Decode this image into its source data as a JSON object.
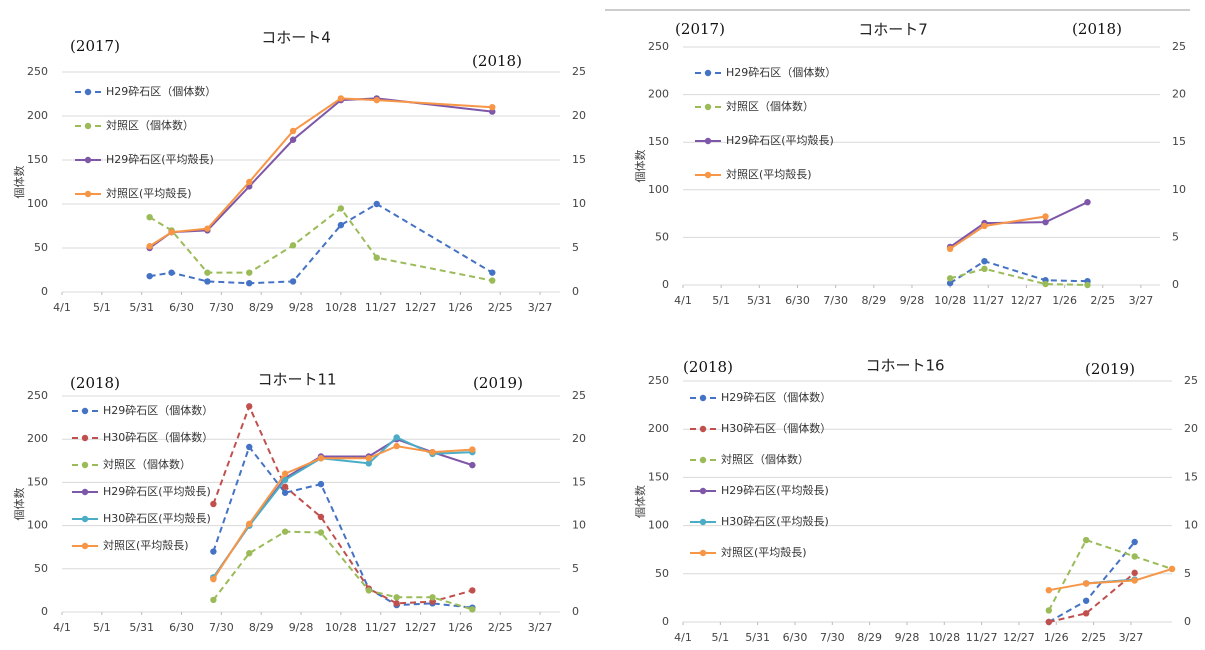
{
  "chart_data": [
    {
      "type": "line",
      "title": "コホート4",
      "annotations": [
        "(2017)",
        "(2018)"
      ],
      "y_label": "個体数",
      "x": [
        2.2,
        2.75,
        3.65,
        4.7,
        5.8,
        7.0,
        7.9,
        10.8
      ],
      "xlim": [
        0,
        12.5
      ],
      "xticks": [
        {
          "value": 0,
          "label": "4/1"
        },
        {
          "value": 1,
          "label": "5/1"
        },
        {
          "value": 2,
          "label": "5/31"
        },
        {
          "value": 3,
          "label": "6/30"
        },
        {
          "value": 4,
          "label": "7/30"
        },
        {
          "value": 5,
          "label": "8/29"
        },
        {
          "value": 6,
          "label": "9/28"
        },
        {
          "value": 7,
          "label": "10/28"
        },
        {
          "value": 8,
          "label": "11/27"
        },
        {
          "value": 9,
          "label": "12/27"
        },
        {
          "value": 10,
          "label": "1/26"
        },
        {
          "value": 11,
          "label": "2/25"
        },
        {
          "value": 12,
          "label": "3/27"
        }
      ],
      "ylim": [
        0,
        250
      ],
      "yticks": [
        0,
        50,
        100,
        150,
        200,
        250
      ],
      "y2lim": [
        0,
        25
      ],
      "y2ticks": [
        0,
        5,
        10,
        15,
        20,
        25
      ],
      "grid": true,
      "series": [
        {
          "name": "H29砕石区（個体数）",
          "color": "#4472c4",
          "line_style": "dashed",
          "values": [
            18,
            22,
            12,
            10,
            12,
            76,
            100,
            22
          ]
        },
        {
          "name": "対照区（個体数）",
          "color": "#9bbb59",
          "line_style": "dashed",
          "values": [
            85,
            70,
            22,
            22,
            53,
            95,
            39,
            13
          ]
        },
        {
          "name": "H29砕石区(平均殻長)",
          "color": "#7e57a8",
          "line_style": "solid",
          "axis": "y2",
          "values": [
            5.0,
            6.8,
            7.0,
            12.0,
            17.3,
            21.8,
            22.0,
            20.5
          ]
        },
        {
          "name": "対照区(平均殻長)",
          "color": "#f79646",
          "line_style": "solid",
          "axis": "y2",
          "values": [
            5.2,
            6.8,
            7.2,
            12.5,
            18.3,
            22.0,
            21.8,
            21.0
          ]
        }
      ]
    },
    {
      "type": "line",
      "title": "コホート7",
      "annotations": [
        "(2017)",
        "(2018)"
      ],
      "y_label": "個体数",
      "x": [
        7.0,
        7.9,
        9.5,
        10.6
      ],
      "xlim": [
        0,
        12.5
      ],
      "xticks": [
        {
          "value": 0,
          "label": "4/1"
        },
        {
          "value": 1,
          "label": "5/1"
        },
        {
          "value": 2,
          "label": "5/31"
        },
        {
          "value": 3,
          "label": "6/30"
        },
        {
          "value": 4,
          "label": "7/30"
        },
        {
          "value": 5,
          "label": "8/29"
        },
        {
          "value": 6,
          "label": "9/28"
        },
        {
          "value": 7,
          "label": "10/28"
        },
        {
          "value": 8,
          "label": "11/27"
        },
        {
          "value": 9,
          "label": "12/27"
        },
        {
          "value": 10,
          "label": "1/26"
        },
        {
          "value": 11,
          "label": "2/25"
        },
        {
          "value": 12,
          "label": "3/27"
        }
      ],
      "ylim": [
        0,
        250
      ],
      "yticks": [
        0,
        50,
        100,
        150,
        200,
        250
      ],
      "y2lim": [
        0,
        25
      ],
      "y2ticks": [
        0,
        5,
        10,
        15,
        20,
        25
      ],
      "grid": true,
      "series": [
        {
          "name": "H29砕石区（個体数）",
          "color": "#4472c4",
          "line_style": "dashed",
          "values": [
            2,
            25,
            5,
            4
          ]
        },
        {
          "name": "対照区（個体数）",
          "color": "#9bbb59",
          "line_style": "dashed",
          "values": [
            7,
            17,
            1,
            0
          ]
        },
        {
          "name": "H29砕石区(平均殻長)",
          "color": "#7e57a8",
          "line_style": "solid",
          "axis": "y2",
          "values": [
            4.0,
            6.5,
            6.6,
            8.7
          ]
        },
        {
          "name": "対照区(平均殻長)",
          "color": "#f79646",
          "line_style": "solid",
          "axis": "y2",
          "values": [
            3.8,
            6.2,
            7.2,
            null
          ]
        }
      ]
    },
    {
      "type": "line",
      "title": "コホート11",
      "annotations": [
        "(2018)",
        "(2019)"
      ],
      "y_label": "個体数",
      "x": [
        3.8,
        4.7,
        5.6,
        6.5,
        7.7,
        8.4,
        9.3,
        10.3
      ],
      "xlim": [
        0,
        12.5
      ],
      "xticks": [
        {
          "value": 0,
          "label": "4/1"
        },
        {
          "value": 1,
          "label": "5/1"
        },
        {
          "value": 2,
          "label": "5/31"
        },
        {
          "value": 3,
          "label": "6/30"
        },
        {
          "value": 4,
          "label": "7/30"
        },
        {
          "value": 5,
          "label": "8/29"
        },
        {
          "value": 6,
          "label": "9/28"
        },
        {
          "value": 7,
          "label": "10/28"
        },
        {
          "value": 8,
          "label": "11/27"
        },
        {
          "value": 9,
          "label": "12/27"
        },
        {
          "value": 10,
          "label": "1/26"
        },
        {
          "value": 11,
          "label": "2/25"
        },
        {
          "value": 12,
          "label": "3/27"
        }
      ],
      "ylim": [
        0,
        250
      ],
      "yticks": [
        0,
        50,
        100,
        150,
        200,
        250
      ],
      "y2lim": [
        0,
        25
      ],
      "y2ticks": [
        0,
        5,
        10,
        15,
        20,
        25
      ],
      "grid": true,
      "series": [
        {
          "name": "H29砕石区（個体数）",
          "color": "#4472c4",
          "line_style": "dashed",
          "values": [
            70,
            191,
            138,
            148,
            27,
            8,
            10,
            5
          ]
        },
        {
          "name": "H30砕石区（個体数）",
          "color": "#c0504d",
          "line_style": "dashed",
          "values": [
            125,
            238,
            145,
            110,
            27,
            10,
            12,
            25
          ]
        },
        {
          "name": "対照区（個体数）",
          "color": "#9bbb59",
          "line_style": "dashed",
          "values": [
            14,
            68,
            93,
            92,
            25,
            17,
            17,
            3
          ]
        },
        {
          "name": "H29砕石区(平均殻長)",
          "color": "#7e57a8",
          "line_style": "solid",
          "axis": "y2",
          "values": [
            4.0,
            10.0,
            15.5,
            18.0,
            18.0,
            20.0,
            18.5,
            17.0
          ]
        },
        {
          "name": "H30砕石区(平均殻長)",
          "color": "#4bacc6",
          "line_style": "solid",
          "axis": "y2",
          "values": [
            4.0,
            10.0,
            15.3,
            17.8,
            17.2,
            20.2,
            18.3,
            18.5
          ]
        },
        {
          "name": "対照区(平均殻長)",
          "color": "#f79646",
          "line_style": "solid",
          "axis": "y2",
          "values": [
            3.8,
            10.2,
            16.0,
            17.8,
            17.8,
            19.2,
            18.5,
            18.8
          ]
        }
      ]
    },
    {
      "type": "line",
      "title": "コホート16",
      "annotations": [
        "(2018)",
        "(2019)"
      ],
      "y_label": "個体数",
      "x": [
        9.8,
        10.8,
        12.1,
        13.1
      ],
      "xlim": [
        0,
        13.1
      ],
      "xticks": [
        {
          "value": 0,
          "label": "4/1"
        },
        {
          "value": 1,
          "label": "5/1"
        },
        {
          "value": 2,
          "label": "5/31"
        },
        {
          "value": 3,
          "label": "6/30"
        },
        {
          "value": 4,
          "label": "7/30"
        },
        {
          "value": 5,
          "label": "8/29"
        },
        {
          "value": 6,
          "label": "9/28"
        },
        {
          "value": 7,
          "label": "10/28"
        },
        {
          "value": 8,
          "label": "11/27"
        },
        {
          "value": 9,
          "label": "12/27"
        },
        {
          "value": 10,
          "label": "1/26"
        },
        {
          "value": 11,
          "label": "2/25"
        },
        {
          "value": 12,
          "label": "3/27"
        }
      ],
      "ylim": [
        0,
        250
      ],
      "yticks": [
        0,
        50,
        100,
        150,
        200,
        250
      ],
      "y2lim": [
        0,
        25
      ],
      "y2ticks": [
        0,
        5,
        10,
        15,
        20,
        25
      ],
      "grid": true,
      "series": [
        {
          "name": "H29砕石区（個体数）",
          "color": "#4472c4",
          "line_style": "dashed",
          "values": [
            0,
            22,
            83,
            null
          ]
        },
        {
          "name": "H30砕石区（個体数）",
          "color": "#c0504d",
          "line_style": "dashed",
          "values": [
            0,
            9,
            51,
            null
          ]
        },
        {
          "name": "対照区（個体数）",
          "color": "#9bbb59",
          "line_style": "dashed",
          "values": [
            12,
            85,
            68,
            55
          ]
        },
        {
          "name": "H29砕石区(平均殻長)",
          "color": "#7e57a8",
          "line_style": "solid",
          "axis": "y2",
          "values": [
            null,
            4.0,
            4.4,
            null
          ]
        },
        {
          "name": "H30砕石区(平均殻長)",
          "color": "#4bacc6",
          "line_style": "solid",
          "axis": "y2",
          "values": [
            null,
            4.0,
            4.4,
            null
          ]
        },
        {
          "name": "対照区(平均殻長)",
          "color": "#f79646",
          "line_style": "solid",
          "axis": "y2",
          "values": [
            3.3,
            4.0,
            4.3,
            5.5
          ]
        }
      ]
    }
  ]
}
